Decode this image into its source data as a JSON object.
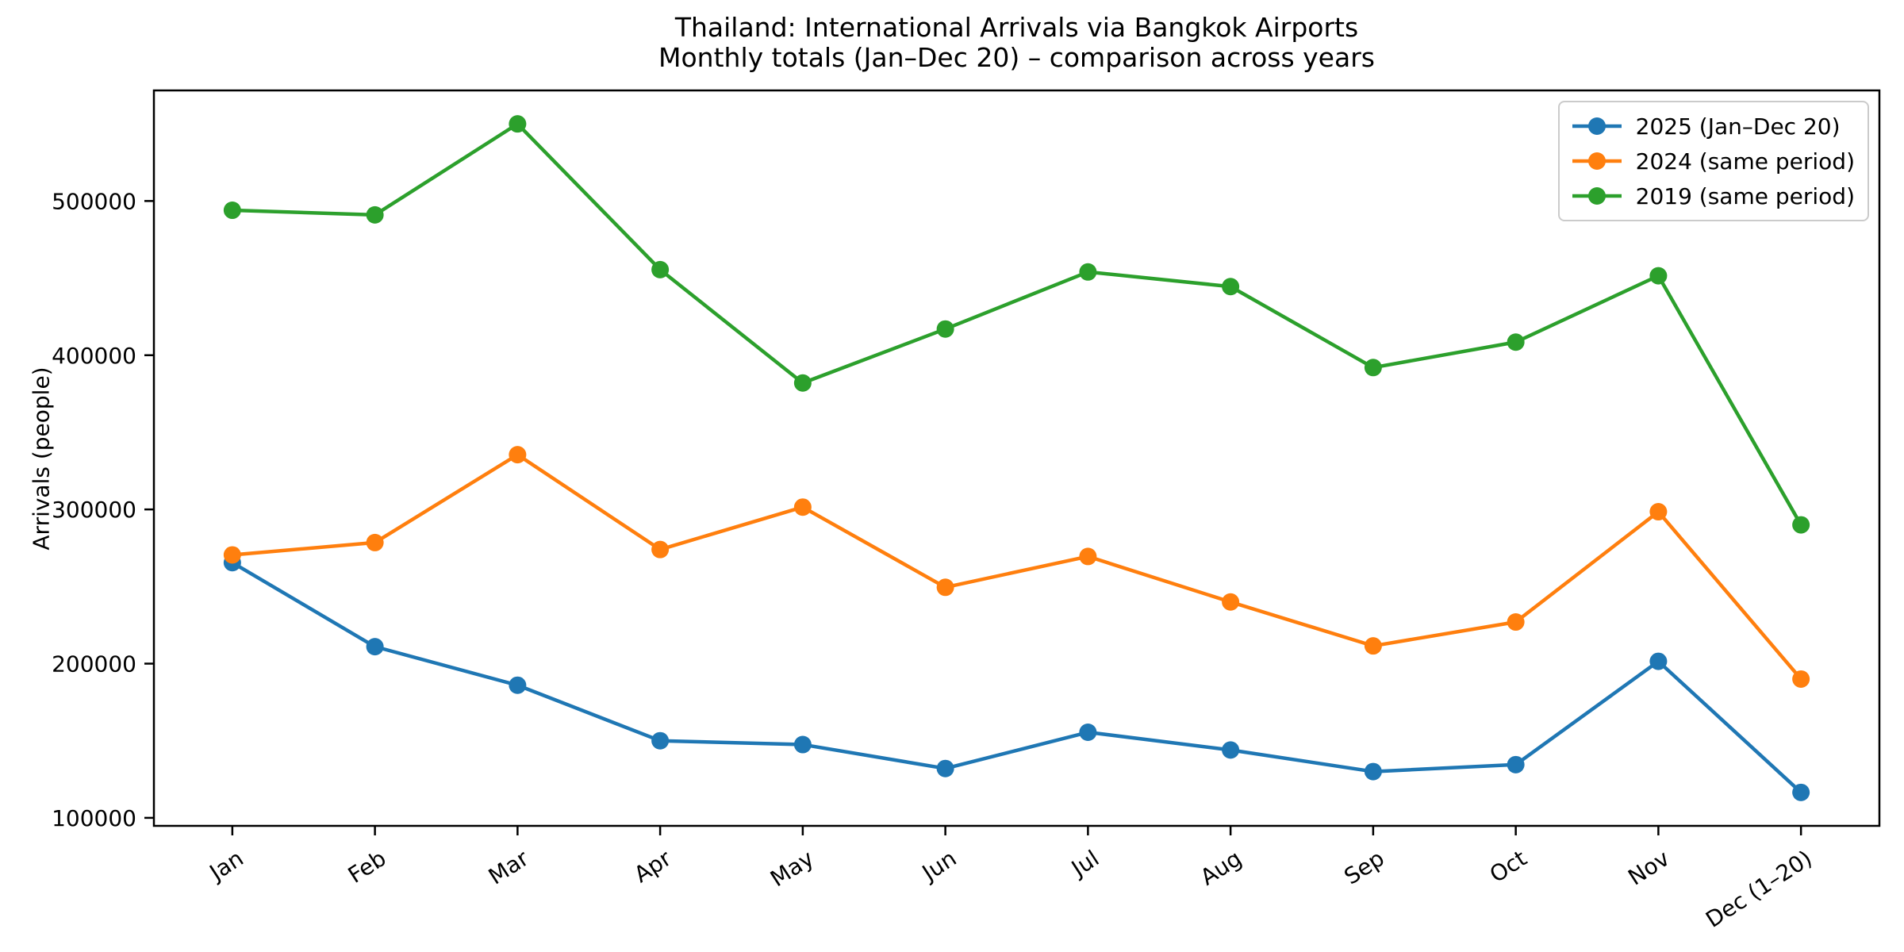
{
  "title": "Thailand: International Arrivals via Bangkok Airports",
  "subtitle": "Monthly totals (Jan–Dec 20) – comparison across years",
  "chart_data": {
    "type": "line",
    "categories": [
      "Jan",
      "Feb",
      "Mar",
      "Apr",
      "May",
      "Jun",
      "Jul",
      "Aug",
      "Sep",
      "Oct",
      "Nov",
      "Dec (1–20)"
    ],
    "series": [
      {
        "name": "2025 (Jan–Dec 20)",
        "color": "#1f77b4",
        "values": [
          265500,
          211000,
          186000,
          150000,
          147500,
          132000,
          155500,
          144000,
          130000,
          134500,
          201500,
          116500
        ]
      },
      {
        "name": "2024 (same period)",
        "color": "#ff7f0e",
        "values": [
          270500,
          278500,
          335500,
          274000,
          301500,
          249500,
          269500,
          240000,
          211500,
          227000,
          298500,
          190000
        ]
      },
      {
        "name": "2019 (same period)",
        "color": "#2ca02c",
        "values": [
          494000,
          491000,
          550000,
          455500,
          382000,
          417000,
          454000,
          444500,
          392000,
          408500,
          451500,
          290000
        ]
      }
    ],
    "xlabel": "",
    "ylabel": "Arrivals (people)",
    "yticks": [
      100000,
      200000,
      300000,
      400000,
      500000
    ],
    "ylim": [
      94800,
      571700
    ],
    "legend_position": "upper right",
    "grid": false,
    "marker": "circle",
    "axis_color": "#000000",
    "legend_border_color": "#cbcbcb"
  }
}
